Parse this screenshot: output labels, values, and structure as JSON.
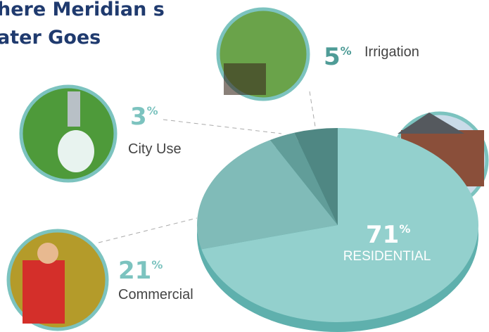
{
  "chart_data": {
    "type": "pie",
    "title_lines": [
      "here Meridian s",
      "ater Goes"
    ],
    "unit": "%",
    "categories": [
      "RESIDENTIAL",
      "Commercial",
      "City Use",
      "Irrigation"
    ],
    "values": [
      71,
      21,
      3,
      5
    ],
    "colors": [
      "#93d0cd",
      "#80bbb8",
      "#619d99",
      "#4f8783"
    ],
    "label_colors": [
      "#ffffff",
      "#7cc3bf",
      "#7cc3bf",
      "#4f9c97"
    ]
  }
}
